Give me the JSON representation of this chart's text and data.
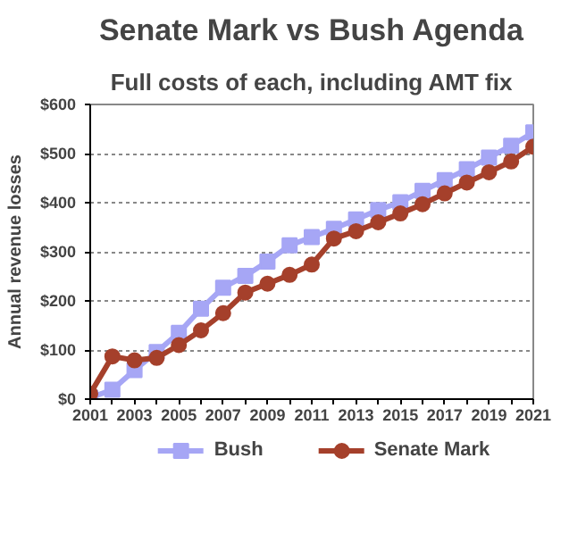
{
  "chart_data": {
    "type": "line",
    "title": "Senate Mark vs Bush Agenda",
    "subtitle": "Full costs of each, including AMT fix",
    "ylabel": "Annual revenue losses",
    "x": [
      2001,
      2002,
      2003,
      2004,
      2005,
      2006,
      2007,
      2008,
      2009,
      2010,
      2011,
      2012,
      2013,
      2014,
      2015,
      2016,
      2017,
      2018,
      2019,
      2020,
      2021
    ],
    "series": [
      {
        "name": "Bush",
        "color": "#a6a6f5",
        "marker": "square",
        "values": [
          3,
          19,
          59,
          96,
          135,
          184,
          227,
          251,
          280,
          313,
          330,
          347,
          366,
          385,
          401,
          424,
          446,
          468,
          492,
          516,
          543
        ]
      },
      {
        "name": "Senate Mark",
        "color": "#a5402b",
        "marker": "circle",
        "values": [
          11,
          87,
          79,
          84,
          110,
          140,
          175,
          217,
          235,
          253,
          274,
          327,
          342,
          360,
          378,
          397,
          419,
          441,
          462,
          484,
          514
        ]
      }
    ],
    "xlim": [
      2001,
      2021
    ],
    "xticks": [
      2001,
      {
        "value": 2002,
        "label": null
      },
      2003,
      {
        "value": 2004,
        "label": null
      },
      2005,
      {
        "value": 2006,
        "label": null
      },
      2007,
      {
        "value": 2008,
        "label": null
      },
      2009,
      {
        "value": 2010,
        "label": null
      },
      2011,
      {
        "value": 2012,
        "label": null
      },
      2013,
      {
        "value": 2014,
        "label": null
      },
      2015,
      {
        "value": 2016,
        "label": null
      },
      2017,
      {
        "value": 2018,
        "label": null
      },
      2019,
      {
        "value": 2020,
        "label": null
      },
      2021
    ],
    "ylim": [
      0,
      600
    ],
    "yticks": [
      {
        "value": 0,
        "label": "$0"
      },
      {
        "value": 100,
        "label": "$100"
      },
      {
        "value": 200,
        "label": "$200"
      },
      {
        "value": 300,
        "label": "$300"
      },
      {
        "value": 400,
        "label": "$400"
      },
      {
        "value": 500,
        "label": "$500"
      },
      {
        "value": 600,
        "label": "$600"
      }
    ],
    "grid": "y",
    "legend": "bottom",
    "line_style": "solid"
  }
}
